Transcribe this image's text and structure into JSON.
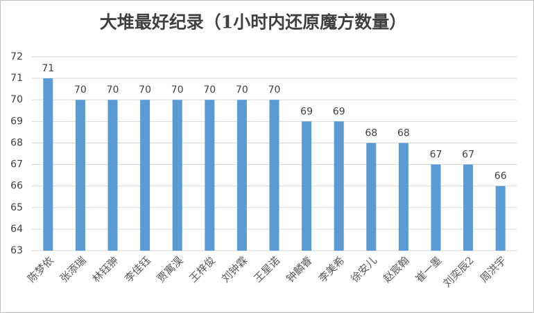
{
  "chart_data": {
    "type": "bar",
    "title": "大堆最好纪录（1小时内还原魔方数量）",
    "categories": [
      "陈梦依",
      "张添瑞",
      "林钰翀",
      "李佳钰",
      "贾寓淏",
      "王梓俊",
      "刘钟霖",
      "王星诺",
      "钟麟睿",
      "李美希",
      "徐安儿",
      "赵宸翰",
      "崔一墨",
      "刘奕辰2",
      "周洪宇"
    ],
    "values": [
      71,
      70,
      70,
      70,
      70,
      70,
      70,
      70,
      69,
      69,
      68,
      68,
      67,
      67,
      66
    ],
    "color": "#5b9bd5",
    "ylim": [
      63,
      72
    ],
    "yticks": [
      63,
      64,
      65,
      66,
      67,
      68,
      69,
      70,
      71,
      72
    ],
    "grid": true
  }
}
